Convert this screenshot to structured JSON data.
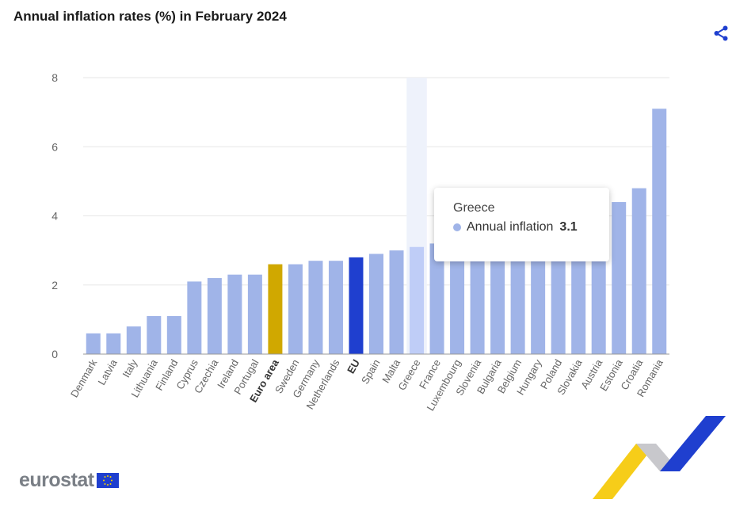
{
  "header": {
    "title": "Annual inflation rates (%) in February 2024"
  },
  "toolbar": {
    "share_icon": "share-icon"
  },
  "colors": {
    "bar": "#a0b4e8",
    "euro_area": "#d0a800",
    "eu": "#1f3fcf",
    "highlight": "#bfcdf7",
    "axis_text": "#666666"
  },
  "chart_data": {
    "type": "bar",
    "title": "Annual inflation rates (%) in February 2024",
    "xlabel": "",
    "ylabel": "",
    "ylim": [
      0,
      8
    ],
    "yticks": [
      0,
      2,
      4,
      6,
      8
    ],
    "grid": true,
    "categories": [
      "Denmark",
      "Latvia",
      "Italy",
      "Lithuania",
      "Finland",
      "Cyprus",
      "Czechia",
      "Ireland",
      "Portugal",
      "Euro area",
      "Sweden",
      "Germany",
      "Netherlands",
      "EU",
      "Spain",
      "Malta",
      "Greece",
      "France",
      "Luxembourg",
      "Slovenia",
      "Bulgaria",
      "Belgium",
      "Hungary",
      "Poland",
      "Slovakia",
      "Austria",
      "Estonia",
      "Croatia",
      "Romania"
    ],
    "bold_categories": [
      "Euro area",
      "EU"
    ],
    "series": [
      {
        "name": "Annual inflation",
        "values": [
          0.6,
          0.6,
          0.8,
          1.1,
          1.1,
          2.1,
          2.2,
          2.3,
          2.3,
          2.6,
          2.6,
          2.7,
          2.7,
          2.8,
          2.9,
          3.0,
          3.1,
          3.2,
          3.2,
          3.4,
          3.5,
          3.8,
          3.9,
          4.0,
          4.2,
          4.2,
          4.4,
          4.8,
          7.1
        ]
      }
    ],
    "hovered_category": "Greece"
  },
  "tooltip": {
    "name": "Greece",
    "series": "Annual inflation",
    "value": "3.1"
  },
  "footer": {
    "logo_text": "eurostat"
  }
}
